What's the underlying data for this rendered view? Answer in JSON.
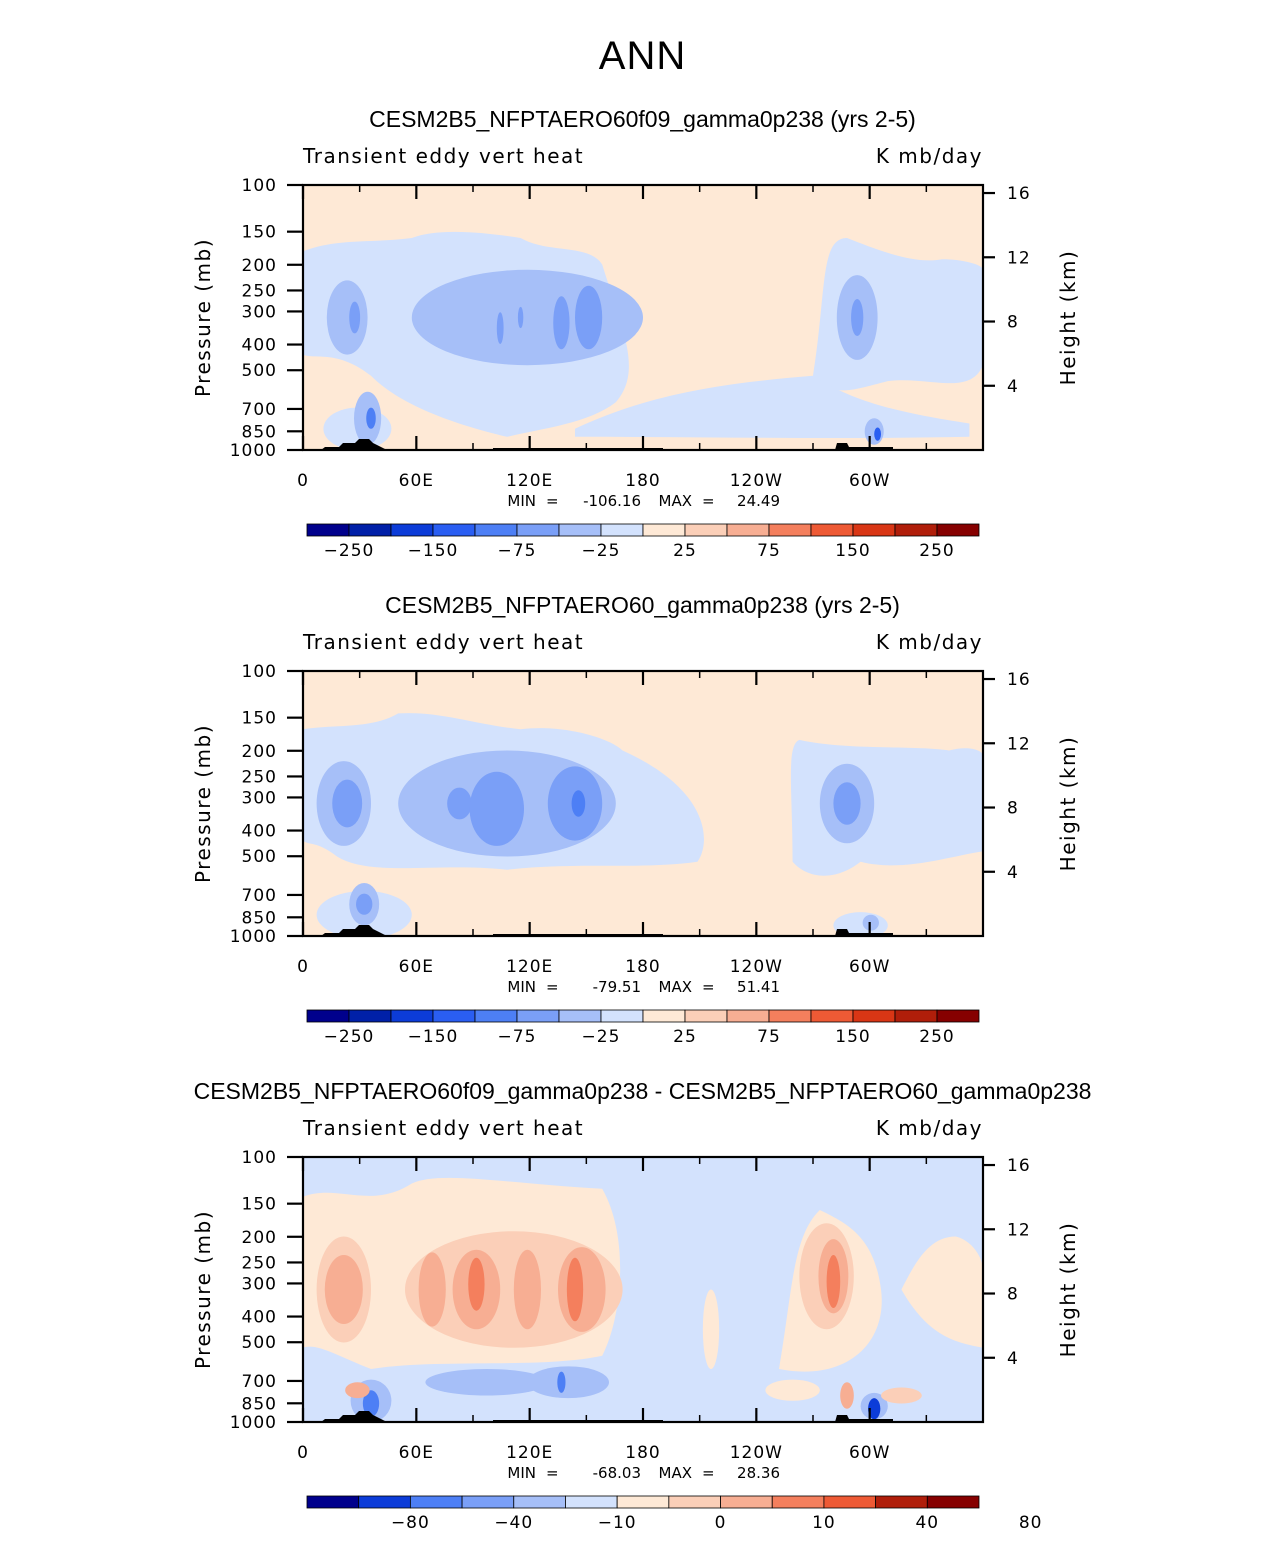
{
  "title": "ANN",
  "chart_data": [
    {
      "type": "heatmap",
      "title": "CESM2B5_NFPTAERO60f09_gamma0p238 (yrs 2-5)",
      "left_label": "Transient eddy vert heat",
      "right_label": "K mb/day",
      "ylabel": "Pressure (mb)",
      "ylabel_right": "Height (km)",
      "x_ticks": [
        "0",
        "60E",
        "120E",
        "180",
        "120W",
        "60W"
      ],
      "y_ticks": [
        "100",
        "150",
        "200",
        "250",
        "300",
        "400",
        "500",
        "700",
        "850",
        "1000"
      ],
      "y_right_ticks": [
        "16",
        "12",
        "8",
        "4"
      ],
      "stats": {
        "min_label": "MIN",
        "min": "-106.16",
        "max_label": "MAX",
        "max": "24.49"
      },
      "colorbar_labels": [
        "-250",
        "-150",
        "-75",
        "-25",
        "25",
        "75",
        "150",
        "250"
      ],
      "levels": [
        -300,
        -250,
        -200,
        -150,
        -100,
        -75,
        -50,
        -25,
        0,
        25,
        50,
        75,
        100,
        150,
        200,
        250,
        300
      ]
    },
    {
      "type": "heatmap",
      "title": "CESM2B5_NFPTAERO60_gamma0p238 (yrs 2-5)",
      "left_label": "Transient eddy vert heat",
      "right_label": "K mb/day",
      "ylabel": "Pressure (mb)",
      "ylabel_right": "Height (km)",
      "x_ticks": [
        "0",
        "60E",
        "120E",
        "180",
        "120W",
        "60W"
      ],
      "y_ticks": [
        "100",
        "150",
        "200",
        "250",
        "300",
        "400",
        "500",
        "700",
        "850",
        "1000"
      ],
      "y_right_ticks": [
        "16",
        "12",
        "8",
        "4"
      ],
      "stats": {
        "min_label": "MIN",
        "min": "-79.51",
        "max_label": "MAX",
        "max": "51.41"
      },
      "colorbar_labels": [
        "-250",
        "-150",
        "-75",
        "-25",
        "25",
        "75",
        "150",
        "250"
      ],
      "levels": [
        -300,
        -250,
        -200,
        -150,
        -100,
        -75,
        -50,
        -25,
        0,
        25,
        50,
        75,
        100,
        150,
        200,
        250,
        300
      ]
    },
    {
      "type": "heatmap",
      "title": "CESM2B5_NFPTAERO60f09_gamma0p238 - CESM2B5_NFPTAERO60_gamma0p238",
      "left_label": "Transient eddy vert heat",
      "right_label": "K mb/day",
      "ylabel": "Pressure (mb)",
      "ylabel_right": "Height (km)",
      "x_ticks": [
        "0",
        "60E",
        "120E",
        "180",
        "120W",
        "60W"
      ],
      "y_ticks": [
        "100",
        "150",
        "200",
        "250",
        "300",
        "400",
        "500",
        "700",
        "850",
        "1000"
      ],
      "y_right_ticks": [
        "16",
        "12",
        "8",
        "4"
      ],
      "stats": {
        "min_label": "MIN",
        "min": "-68.03",
        "max_label": "MAX",
        "max": "28.36"
      },
      "colorbar_labels": [
        "-80",
        "-40",
        "-10",
        "0",
        "10",
        "40",
        "80"
      ],
      "levels": [
        -100,
        -80,
        -60,
        -40,
        -20,
        -10,
        -5,
        0,
        5,
        10,
        20,
        40,
        60,
        80,
        100
      ]
    }
  ],
  "colors": {
    "palette": [
      "#00008c",
      "#0020a8",
      "#0c3cd8",
      "#2a5ef2",
      "#4d7ff5",
      "#7a9ff7",
      "#a6bff8",
      "#d3e2fd",
      "#fee9d6",
      "#fbcfb8",
      "#f7ae93",
      "#f47f5d",
      "#ee5a35",
      "#d93615",
      "#b01e0a",
      "#860000"
    ],
    "diff_palette": [
      "#00008c",
      "#0c3cd8",
      "#4d7ff5",
      "#7a9ff7",
      "#a6bff8",
      "#d3e2fd",
      "#fee9d6",
      "#fbcfb8",
      "#f7ae93",
      "#f47f5d",
      "#ee5a35",
      "#b01e0a",
      "#860000"
    ],
    "bg_positive": "#fee9d6",
    "bg_negative": "#d3e2fd",
    "topo": "#000000"
  }
}
